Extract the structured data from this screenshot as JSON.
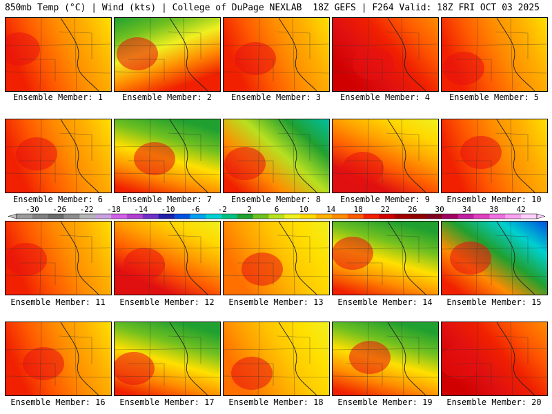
{
  "header": {
    "left": "850mb Temp (°C) | Wind (kts) | College of DuPage NEXLAB",
    "right": "18Z GEFS | F264 Valid: 18Z FRI OCT 03 2025"
  },
  "scale": {
    "labels": [
      "-30",
      "-26",
      "-22",
      "-18",
      "-14",
      "-10",
      "-6",
      "-2",
      "2",
      "6",
      "10",
      "14",
      "18",
      "22",
      "26",
      "30",
      "34",
      "38",
      "42"
    ],
    "colors": [
      "#9a9a9a",
      "#808080",
      "#6a6a6a",
      "#8c8c8c",
      "#b4b4b4",
      "#c8a0e0",
      "#d060e8",
      "#b040d0",
      "#7030c8",
      "#2020a8",
      "#0050e0",
      "#00a0f0",
      "#00d0d0",
      "#00c080",
      "#20a030",
      "#70c020",
      "#b8e020",
      "#f0f020",
      "#ffd800",
      "#ffb000",
      "#ff8c00",
      "#ff5a00",
      "#f02000",
      "#d00000",
      "#a00000",
      "#900000",
      "#800020",
      "#a00060",
      "#c020a0",
      "#e040c0",
      "#f070e0",
      "#f8a0f0",
      "#ffd0ff"
    ]
  },
  "members": [
    {
      "label": "Ensemble Member: 1",
      "scheme": "warm-w"
    },
    {
      "label": "Ensemble Member: 2",
      "scheme": "green-nw"
    },
    {
      "label": "Ensemble Member: 3",
      "scheme": "warm-w"
    },
    {
      "label": "Ensemble Member: 4",
      "scheme": "hot"
    },
    {
      "label": "Ensemble Member: 5",
      "scheme": "warm-w"
    },
    {
      "label": "Ensemble Member: 6",
      "scheme": "warm-w"
    },
    {
      "label": "Ensemble Member: 7",
      "scheme": "green-n"
    },
    {
      "label": "Ensemble Member: 8",
      "scheme": "green-ne"
    },
    {
      "label": "Ensemble Member: 9",
      "scheme": "center-hot"
    },
    {
      "label": "Ensemble Member: 10",
      "scheme": "warm-w"
    },
    {
      "label": "Ensemble Member: 11",
      "scheme": "warm-w"
    },
    {
      "label": "Ensemble Member: 12",
      "scheme": "center-hot"
    },
    {
      "label": "Ensemble Member: 13",
      "scheme": "mild"
    },
    {
      "label": "Ensemble Member: 14",
      "scheme": "green-n"
    },
    {
      "label": "Ensemble Member: 15",
      "scheme": "cold-ne"
    },
    {
      "label": "Ensemble Member: 16",
      "scheme": "warm-w"
    },
    {
      "label": "Ensemble Member: 17",
      "scheme": "green-n"
    },
    {
      "label": "Ensemble Member: 18",
      "scheme": "mild"
    },
    {
      "label": "Ensemble Member: 19",
      "scheme": "green-n"
    },
    {
      "label": "Ensemble Member: 20",
      "scheme": "hot"
    }
  ]
}
